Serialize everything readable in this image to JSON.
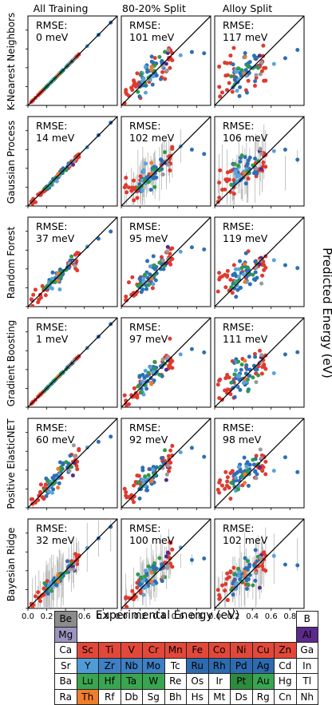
{
  "chart_data": {
    "type": "scatter",
    "columns": [
      "All Training",
      "80-20% Split",
      "Alloy Split"
    ],
    "rows": [
      "K-Nearest Neighbors",
      "Gaussian Process",
      "Random Forest",
      "Gradient Boosting",
      "Positive ElasticNET",
      "Bayesian Ridge"
    ],
    "xlabel": "Experimental Energy (eV)",
    "ylabel": "Predicted Energy (eV)",
    "xlim": [
      0,
      0.95
    ],
    "ylim": [
      0,
      0.95
    ],
    "xticks": [
      "0.0",
      "0.2",
      "0.4",
      "0.6",
      "0.8"
    ],
    "yticks": [
      "0.0",
      "0.2",
      "0.4",
      "0.6",
      "0.8"
    ],
    "rmse_prefix": "RMSE:",
    "rmse_unit": "meV",
    "rmse": [
      [
        "0",
        "101",
        "117"
      ],
      [
        "14",
        "102",
        "106"
      ],
      [
        "37",
        "95",
        "119"
      ],
      [
        "1",
        "97",
        "111"
      ],
      [
        "60",
        "92",
        "98"
      ],
      [
        "32",
        "100",
        "102"
      ]
    ],
    "series_colors": {
      "sc_ti_v_cr_mn_fe_co_ni_cu_zn": "#e03a2f",
      "y_zr_nb_mo_ru_rh_pd_ag": "#2d6fb5",
      "mo_tc_light": "#5aa4d8",
      "lu_hf_ta_w_pt_au": "#2e9a46",
      "al": "#5a2a8a",
      "th": "#ee7b2a",
      "be_mg": "#999999"
    }
  },
  "periodic_table": {
    "rows": [
      [
        {
          "s": "Be",
          "c": "#8c8c8c"
        },
        null,
        null,
        null,
        null,
        null,
        null,
        null,
        null,
        null,
        null,
        null,
        {
          "s": "B",
          "c": "#ffffff"
        }
      ],
      [
        {
          "s": "Mg",
          "c": "#9b95c0"
        },
        null,
        null,
        null,
        null,
        null,
        null,
        null,
        null,
        null,
        null,
        null,
        {
          "s": "Al",
          "c": "#5b2a8b"
        }
      ],
      [
        {
          "s": "Ca",
          "c": "#ffffff"
        },
        {
          "s": "Sc",
          "c": "#e2483a"
        },
        {
          "s": "Ti",
          "c": "#e2483a"
        },
        {
          "s": "V",
          "c": "#e2483a"
        },
        {
          "s": "Cr",
          "c": "#e2483a"
        },
        {
          "s": "Mn",
          "c": "#e2483a"
        },
        {
          "s": "Fe",
          "c": "#e2483a"
        },
        {
          "s": "Co",
          "c": "#e2483a"
        },
        {
          "s": "Ni",
          "c": "#e2483a"
        },
        {
          "s": "Cu",
          "c": "#e2483a"
        },
        {
          "s": "Zn",
          "c": "#e2483a"
        },
        {
          "s": "Ga",
          "c": "#ffffff"
        }
      ],
      [
        {
          "s": "Sr",
          "c": "#ffffff"
        },
        {
          "s": "Y",
          "c": "#4f9bd8"
        },
        {
          "s": "Zr",
          "c": "#3f7fc4"
        },
        {
          "s": "Nb",
          "c": "#3f7fc4"
        },
        {
          "s": "Mo",
          "c": "#3f7fc4"
        },
        {
          "s": "Tc",
          "c": "#ffffff"
        },
        {
          "s": "Ru",
          "c": "#2d6bb0"
        },
        {
          "s": "Rh",
          "c": "#2d6bb0"
        },
        {
          "s": "Pd",
          "c": "#2d6bb0"
        },
        {
          "s": "Ag",
          "c": "#2d6bb0"
        },
        {
          "s": "Cd",
          "c": "#ffffff"
        },
        {
          "s": "In",
          "c": "#ffffff"
        }
      ],
      [
        {
          "s": "Ba",
          "c": "#ffffff"
        },
        {
          "s": "Lu",
          "c": "#3aa550"
        },
        {
          "s": "Hf",
          "c": "#3aa550"
        },
        {
          "s": "Ta",
          "c": "#3aa550"
        },
        {
          "s": "W",
          "c": "#3aa550"
        },
        {
          "s": "Re",
          "c": "#ffffff"
        },
        {
          "s": "Os",
          "c": "#ffffff"
        },
        {
          "s": "Ir",
          "c": "#ffffff"
        },
        {
          "s": "Pt",
          "c": "#2e8b3e"
        },
        {
          "s": "Au",
          "c": "#3aa550"
        },
        {
          "s": "Hg",
          "c": "#ffffff"
        },
        {
          "s": "Tl",
          "c": "#ffffff"
        }
      ],
      [
        {
          "s": "Ra",
          "c": "#ffffff"
        },
        {
          "s": "Th",
          "c": "#ef7e2b"
        },
        {
          "s": "Rf",
          "c": "#ffffff"
        },
        {
          "s": "Db",
          "c": "#ffffff"
        },
        {
          "s": "Sg",
          "c": "#ffffff"
        },
        {
          "s": "Bh",
          "c": "#ffffff"
        },
        {
          "s": "Hs",
          "c": "#ffffff"
        },
        {
          "s": "Mt",
          "c": "#ffffff"
        },
        {
          "s": "Ds",
          "c": "#ffffff"
        },
        {
          "s": "Rg",
          "c": "#ffffff"
        },
        {
          "s": "Cn",
          "c": "#ffffff"
        },
        {
          "s": "Nh",
          "c": "#ffffff"
        }
      ]
    ]
  }
}
